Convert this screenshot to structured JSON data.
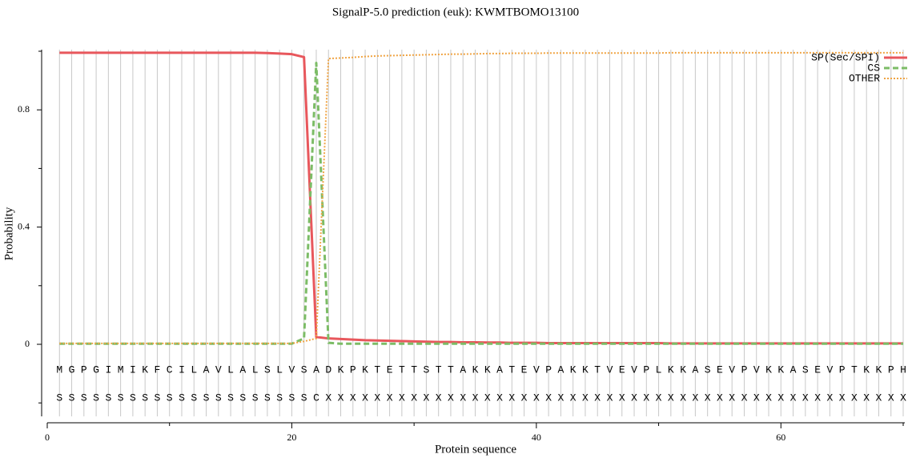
{
  "chart_data": {
    "type": "line",
    "title": "SignalP-5.0 prediction (euk):  KWMTBOMO13100",
    "x_label": "Protein sequence",
    "y_label": "Probability",
    "x": [
      1,
      2,
      3,
      4,
      5,
      6,
      7,
      8,
      9,
      10,
      11,
      12,
      13,
      14,
      15,
      16,
      17,
      18,
      19,
      20,
      21,
      22,
      23,
      24,
      25,
      26,
      27,
      28,
      29,
      30,
      31,
      32,
      33,
      34,
      35,
      36,
      37,
      38,
      39,
      40,
      41,
      42,
      43,
      44,
      45,
      46,
      47,
      48,
      49,
      50,
      51,
      52,
      53,
      54,
      55,
      56,
      57,
      58,
      59,
      60,
      61,
      62,
      63,
      64,
      65,
      66,
      67,
      68,
      69,
      70
    ],
    "sequence": [
      "M",
      "G",
      "P",
      "G",
      "I",
      "M",
      "I",
      "K",
      "F",
      "C",
      "I",
      "L",
      "A",
      "V",
      "L",
      "A",
      "L",
      "S",
      "L",
      "V",
      "S",
      "A",
      "D",
      "K",
      "P",
      "K",
      "T",
      "E",
      "T",
      "T",
      "S",
      "T",
      "T",
      "A",
      "K",
      "K",
      "A",
      "T",
      "E",
      "V",
      "P",
      "A",
      "K",
      "K",
      "T",
      "V",
      "E",
      "V",
      "P",
      "L",
      "K",
      "K",
      "A",
      "S",
      "E",
      "V",
      "P",
      "V",
      "K",
      "K",
      "A",
      "S",
      "E",
      "V",
      "P",
      "T",
      "K",
      "K",
      "P",
      "H"
    ],
    "annotation": [
      "S",
      "S",
      "S",
      "S",
      "S",
      "S",
      "S",
      "S",
      "S",
      "S",
      "S",
      "S",
      "S",
      "S",
      "S",
      "S",
      "S",
      "S",
      "S",
      "S",
      "S",
      "C",
      "X",
      "X",
      "X",
      "X",
      "X",
      "X",
      "X",
      "X",
      "X",
      "X",
      "X",
      "X",
      "X",
      "X",
      "X",
      "X",
      "X",
      "X",
      "X",
      "X",
      "X",
      "X",
      "X",
      "X",
      "X",
      "X",
      "X",
      "X",
      "X",
      "X",
      "X",
      "X",
      "X",
      "X",
      "X",
      "X",
      "X",
      "X",
      "X",
      "X",
      "X",
      "X",
      "X",
      "X",
      "X",
      "X",
      "X",
      "X"
    ],
    "series": [
      {
        "name": "SP(Sec/SPI)",
        "color": "#e8575c",
        "dash": "solid",
        "values": [
          0.995,
          0.995,
          0.995,
          0.995,
          0.995,
          0.995,
          0.995,
          0.995,
          0.995,
          0.995,
          0.995,
          0.995,
          0.995,
          0.995,
          0.995,
          0.995,
          0.995,
          0.994,
          0.992,
          0.99,
          0.98,
          0.025,
          0.02,
          0.018,
          0.016,
          0.014,
          0.013,
          0.012,
          0.011,
          0.01,
          0.009,
          0.008,
          0.008,
          0.007,
          0.007,
          0.006,
          0.006,
          0.005,
          0.005,
          0.005,
          0.004,
          0.004,
          0.004,
          0.004,
          0.004,
          0.004,
          0.004,
          0.004,
          0.004,
          0.004,
          0.003,
          0.003,
          0.003,
          0.003,
          0.003,
          0.003,
          0.003,
          0.003,
          0.003,
          0.003,
          0.003,
          0.003,
          0.003,
          0.003,
          0.003,
          0.003,
          0.003,
          0.003,
          0.003,
          0.003
        ]
      },
      {
        "name": "CS",
        "color": "#7cbc66",
        "dash": "dashed",
        "values": [
          0.002,
          0.002,
          0.002,
          0.002,
          0.002,
          0.002,
          0.002,
          0.002,
          0.002,
          0.002,
          0.002,
          0.002,
          0.002,
          0.002,
          0.002,
          0.002,
          0.002,
          0.002,
          0.002,
          0.002,
          0.02,
          0.96,
          0.005,
          0.002,
          0.002,
          0.002,
          0.002,
          0.002,
          0.002,
          0.002,
          0.002,
          0.002,
          0.002,
          0.002,
          0.002,
          0.002,
          0.002,
          0.002,
          0.002,
          0.002,
          0.002,
          0.002,
          0.002,
          0.002,
          0.002,
          0.002,
          0.002,
          0.002,
          0.002,
          0.002,
          0.002,
          0.002,
          0.002,
          0.002,
          0.002,
          0.002,
          0.002,
          0.002,
          0.002,
          0.002,
          0.002,
          0.002,
          0.002,
          0.002,
          0.002,
          0.002,
          0.002,
          0.002,
          0.002,
          0.002
        ]
      },
      {
        "name": "OTHER",
        "color": "#f0a443",
        "dash": "dotted",
        "values": [
          0.003,
          0.003,
          0.003,
          0.003,
          0.003,
          0.003,
          0.003,
          0.003,
          0.003,
          0.003,
          0.003,
          0.003,
          0.003,
          0.003,
          0.003,
          0.003,
          0.003,
          0.003,
          0.003,
          0.003,
          0.01,
          0.02,
          0.975,
          0.977,
          0.979,
          0.982,
          0.984,
          0.985,
          0.986,
          0.987,
          0.988,
          0.989,
          0.99,
          0.99,
          0.991,
          0.992,
          0.992,
          0.993,
          0.993,
          0.993,
          0.994,
          0.994,
          0.994,
          0.994,
          0.994,
          0.994,
          0.994,
          0.994,
          0.994,
          0.994,
          0.995,
          0.995,
          0.995,
          0.995,
          0.995,
          0.995,
          0.995,
          0.995,
          0.995,
          0.995,
          0.995,
          0.995,
          0.995,
          0.995,
          0.995,
          0.995,
          0.995,
          0.995,
          0.995,
          0.995
        ]
      }
    ],
    "xlim": [
      0,
      70
    ],
    "xticks": [
      0,
      20,
      40,
      60
    ],
    "xminor": [
      10,
      30,
      50,
      70
    ],
    "ylim": [
      -0.25,
      1.0
    ],
    "yticks": [
      0,
      0.4,
      0.8
    ],
    "yminor": [
      -0.2,
      0.2,
      0.6,
      1.0
    ],
    "legend": "upper right"
  }
}
